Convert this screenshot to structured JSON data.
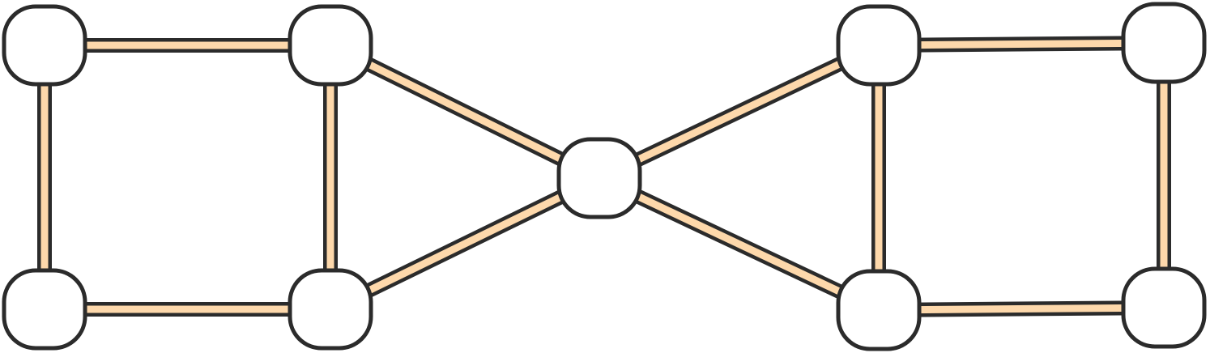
{
  "diagram": {
    "type": "undirected-graph",
    "colors": {
      "background": "#ffffff",
      "outline": "#2b2b2b",
      "edge_fill": "#fdd8ab",
      "node_fill": "#ffffff"
    },
    "nodes": [
      {
        "id": "n1",
        "label": ""
      },
      {
        "id": "n2",
        "label": ""
      },
      {
        "id": "n3",
        "label": ""
      },
      {
        "id": "n4",
        "label": ""
      },
      {
        "id": "n5",
        "label": ""
      },
      {
        "id": "n6",
        "label": ""
      },
      {
        "id": "n7",
        "label": ""
      },
      {
        "id": "n8",
        "label": ""
      },
      {
        "id": "n9",
        "label": ""
      }
    ],
    "edges": [
      {
        "from": "n1",
        "to": "n2"
      },
      {
        "from": "n1",
        "to": "n3"
      },
      {
        "from": "n2",
        "to": "n4"
      },
      {
        "from": "n3",
        "to": "n4"
      },
      {
        "from": "n2",
        "to": "n5"
      },
      {
        "from": "n4",
        "to": "n5"
      },
      {
        "from": "n5",
        "to": "n6"
      },
      {
        "from": "n5",
        "to": "n7"
      },
      {
        "from": "n6",
        "to": "n8"
      },
      {
        "from": "n6",
        "to": "n7"
      },
      {
        "from": "n7",
        "to": "n9"
      },
      {
        "from": "n8",
        "to": "n9"
      }
    ]
  }
}
